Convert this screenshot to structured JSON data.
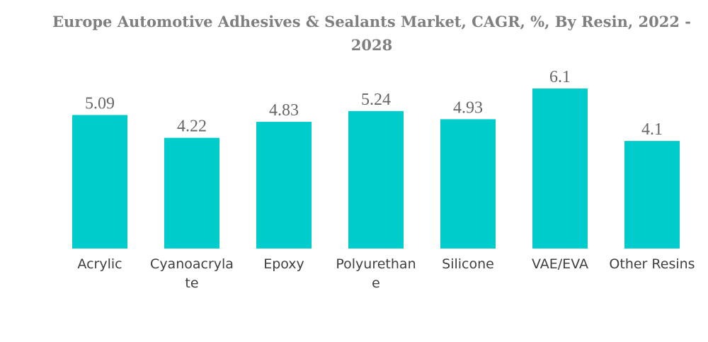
{
  "colors": {
    "bar": "#00cccc",
    "title": "#7f7f7f",
    "value_label": "#666666",
    "tick_label": "#3f3f3f"
  },
  "chart_data": {
    "type": "bar",
    "title": "Europe Automotive Adhesives & Sealants Market, CAGR, %, By Resin, 2022 - 2028",
    "xlabel": "",
    "ylabel": "",
    "categories": [
      "Acrylic",
      "Cyanoacrylate",
      "Epoxy",
      "Polyurethane",
      "Silicone",
      "VAE/EVA",
      "Other Resins"
    ],
    "category_lines": [
      [
        "Acrylic"
      ],
      [
        "Cyanoacryla",
        "te"
      ],
      [
        "Epoxy"
      ],
      [
        "Polyurethan",
        "e"
      ],
      [
        "Silicone"
      ],
      [
        "VAE/EVA"
      ],
      [
        "Other Resins"
      ]
    ],
    "values": [
      5.09,
      4.22,
      4.83,
      5.24,
      4.93,
      6.1,
      4.1
    ],
    "value_labels": [
      "5.09",
      "4.22",
      "4.83",
      "5.24",
      "4.93",
      "6.1",
      "4.1"
    ],
    "ylim": [
      0,
      6.1
    ],
    "grid": false,
    "legend": "none"
  }
}
